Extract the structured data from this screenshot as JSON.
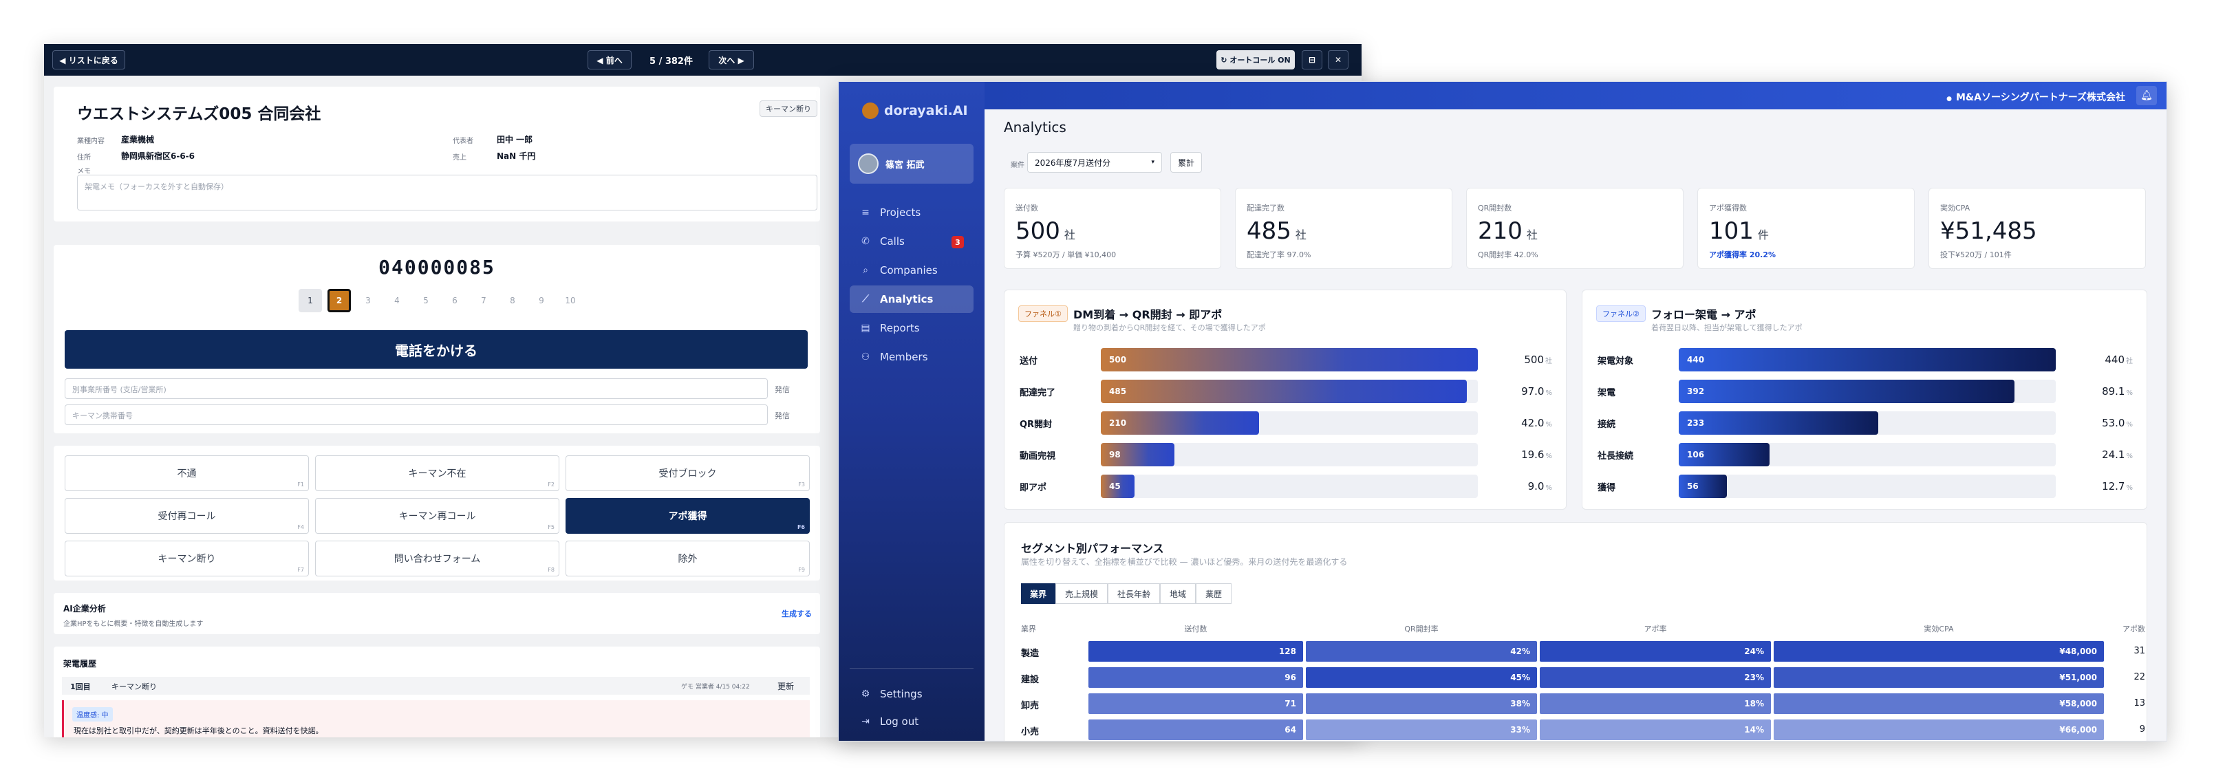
{
  "call_window": {
    "toolbar": {
      "back_label": "◀ リストに戻る",
      "prev_label": "◀ 前へ",
      "page_label": "5 / 382件",
      "next_label": "次へ ▶",
      "autocall_label": "↻ オートコール ON"
    },
    "company": {
      "name": "ウエストシステムズ005 合同会社",
      "status_tag": "キーマン断り",
      "fields": [
        {
          "label": "業種内容",
          "value": "産業機械"
        },
        {
          "label": "住所",
          "value": "静岡県新宿区6-6-6"
        },
        {
          "label": "代表者",
          "value": "田中 一郎"
        },
        {
          "label": "売上",
          "value": "NaN 千円"
        }
      ],
      "memo_label": "メモ",
      "memo_placeholder": "架電メモ（フォーカスを外すと自動保存）"
    },
    "dialer": {
      "phone_number": "040000085",
      "pages": [
        "1",
        "2",
        "3",
        "4",
        "5",
        "6",
        "7",
        "8",
        "9",
        "10"
      ],
      "active_page": 2,
      "call_button": "電話をかける",
      "inputs": [
        {
          "placeholder": "別事業所番号 (支店/営業所)",
          "action": "発信"
        },
        {
          "placeholder": "キーマン携帯番号",
          "action": "発信"
        }
      ]
    },
    "outcomes": [
      {
        "label": "不通",
        "key": "F1"
      },
      {
        "label": "キーマン不在",
        "key": "F2"
      },
      {
        "label": "受付ブロック",
        "key": "F3"
      },
      {
        "label": "受付再コール",
        "key": "F4"
      },
      {
        "label": "キーマン再コール",
        "key": "F5"
      },
      {
        "label": "アポ獲得",
        "key": "F6"
      },
      {
        "label": "キーマン断り",
        "key": "F7"
      },
      {
        "label": "問い合わせフォーム",
        "key": "F8"
      },
      {
        "label": "除外",
        "key": "F9"
      }
    ],
    "ai_analysis": {
      "title": "AI企業分析",
      "subtitle": "企業HPをもとに概要・特徴を自動生成します",
      "action": "生成する"
    },
    "history": {
      "title": "架電履歴",
      "row_index": "1回目",
      "row_result": "キーマン断り",
      "row_meta": "ゲモ 営業者 4/15 04:22",
      "row_action": "更新",
      "badge": "温度感: 中",
      "note": "現在は別社と取引中だが、契約更新は半年後とのこと。資料送付を快諾。"
    }
  },
  "analytics_window": {
    "brand": "dorayaki.AI",
    "user_name": "篠宮 拓武",
    "workspace": "M&Aソーシングパートナーズ株式会社",
    "nav": [
      {
        "label": "Projects",
        "icon": "≡"
      },
      {
        "label": "Calls",
        "icon": "✆",
        "badge": "3"
      },
      {
        "label": "Companies",
        "icon": "⌕"
      },
      {
        "label": "Analytics",
        "icon": "⟋",
        "active": true
      },
      {
        "label": "Reports",
        "icon": "▤"
      },
      {
        "label": "Members",
        "icon": "⚇"
      }
    ],
    "footer_nav": [
      {
        "label": "Settings",
        "icon": "⚙"
      },
      {
        "label": "Log out",
        "icon": "⇥"
      }
    ],
    "page_title": "Analytics",
    "filter_label": "案件",
    "filter_value": "2026年度7月送付分",
    "filter_secondary": "累計",
    "kpis": [
      {
        "label": "送付数",
        "value": "500",
        "unit": "社",
        "sub": "予算 ¥520万 / 単価 ¥10,400",
        "sub_highlight": false
      },
      {
        "label": "配達完了数",
        "value": "485",
        "unit": "社",
        "sub": "配達完了率 97.0%",
        "sub_highlight": false
      },
      {
        "label": "QR開封数",
        "value": "210",
        "unit": "社",
        "sub": "QR開封率 42.0%",
        "sub_highlight": false
      },
      {
        "label": "アポ獲得数",
        "value": "101",
        "unit": "件",
        "sub": "アポ獲得率 20.2%",
        "sub_highlight": true
      },
      {
        "label": "実効CPA",
        "value": "¥51,485",
        "unit": "",
        "sub": "投下¥520万 / 101件",
        "sub_highlight": false
      }
    ],
    "funnel1": {
      "tag": "ファネル①",
      "title": "DM到着 → QR開封 → 即アポ",
      "subtitle": "贈り物の到着からQR開封を経て、その場で獲得したアポ",
      "rows": [
        {
          "label": "送付",
          "count": 500,
          "right": "500",
          "unit": "社"
        },
        {
          "label": "配達完了",
          "count": 485,
          "right": "97.0",
          "unit": "%"
        },
        {
          "label": "QR開封",
          "count": 210,
          "right": "42.0",
          "unit": "%"
        },
        {
          "label": "動画完視",
          "count": 98,
          "right": "19.6",
          "unit": "%"
        },
        {
          "label": "即アポ",
          "count": 45,
          "right": "9.0",
          "unit": "%"
        }
      ]
    },
    "funnel2": {
      "tag": "ファネル②",
      "title": "フォロー架電 → アポ",
      "subtitle": "着荷翌日以降、担当が架電して獲得したアポ",
      "rows": [
        {
          "label": "架電対象",
          "count": 440,
          "right": "440",
          "unit": "社"
        },
        {
          "label": "架電",
          "count": 392,
          "right": "89.1",
          "unit": "%"
        },
        {
          "label": "接続",
          "count": 233,
          "right": "53.0",
          "unit": "%"
        },
        {
          "label": "社長接続",
          "count": 106,
          "right": "24.1",
          "unit": "%"
        },
        {
          "label": "獲得",
          "count": 56,
          "right": "12.7",
          "unit": "%"
        }
      ]
    },
    "segment": {
      "title": "セグメント別パフォーマンス",
      "subtitle": "属性を切り替えて、全指標を横並びで比較 — 濃いほど優秀。来月の送付先を最適化する",
      "tabs": [
        "業界",
        "売上規模",
        "社長年齢",
        "地域",
        "業歴"
      ],
      "active_tab": 0,
      "columns": [
        "業界",
        "送付数",
        "QR開封率",
        "アポ率",
        "実効CPA",
        "アポ数"
      ],
      "rows": [
        {
          "label": "製造",
          "sent": 128,
          "qr": "42%",
          "apo_rate": "24%",
          "cpa": "¥48,000",
          "apo": "31"
        },
        {
          "label": "建設",
          "sent": 96,
          "qr": "45%",
          "apo_rate": "23%",
          "cpa": "¥51,000",
          "apo": "22"
        },
        {
          "label": "卸売",
          "sent": 71,
          "qr": "38%",
          "apo_rate": "18%",
          "cpa": "¥58,000",
          "apo": "13"
        },
        {
          "label": "小売",
          "sent": 64,
          "qr": "33%",
          "apo_rate": "14%",
          "cpa": "¥66,000",
          "apo": "9"
        }
      ]
    }
  }
}
